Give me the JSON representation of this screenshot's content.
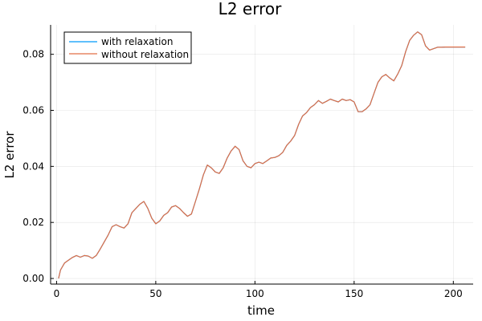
{
  "chart_data": {
    "type": "line",
    "title": "L2 error",
    "xlabel": "time",
    "ylabel": "L2 error",
    "xlim": [
      -3,
      210
    ],
    "ylim": [
      -0.002,
      0.0905
    ],
    "xticks": [
      0,
      50,
      100,
      150,
      200
    ],
    "xtick_labels": [
      "0",
      "50",
      "100",
      "150",
      "200"
    ],
    "yticks": [
      0.0,
      0.02,
      0.04,
      0.06,
      0.08
    ],
    "ytick_labels": [
      "0.00",
      "0.02",
      "0.04",
      "0.06",
      "0.08"
    ],
    "grid": true,
    "legend_position": "top-left",
    "series": [
      {
        "name": "with relaxation",
        "color": "#009AFA",
        "x": [
          1,
          2,
          4,
          6,
          8,
          10,
          12,
          14,
          16,
          18,
          20,
          22,
          24,
          26,
          28,
          30,
          32,
          34,
          36,
          38,
          40,
          42,
          44,
          46,
          48,
          50,
          52,
          54,
          56,
          58,
          60,
          62,
          64,
          66,
          68,
          70,
          72,
          74,
          76,
          78,
          80,
          82,
          84,
          86,
          88,
          90,
          92,
          94,
          96,
          98,
          100,
          102,
          104,
          106,
          108,
          110,
          112,
          114,
          116,
          118,
          120,
          122,
          124,
          126,
          128,
          130,
          132,
          134,
          136,
          138,
          140,
          142,
          144,
          146,
          148,
          150,
          152,
          154,
          156,
          158,
          160,
          162,
          164,
          166,
          168,
          170,
          172,
          174,
          176,
          178,
          180,
          182,
          184,
          186,
          188,
          190,
          192,
          194,
          196,
          198,
          200,
          202,
          204,
          206
        ],
        "y": [
          0.0,
          0.003,
          0.0055,
          0.0065,
          0.0075,
          0.0082,
          0.0076,
          0.0082,
          0.008,
          0.0072,
          0.0082,
          0.0105,
          0.013,
          0.0155,
          0.0185,
          0.0192,
          0.0185,
          0.018,
          0.0195,
          0.0235,
          0.025,
          0.0265,
          0.0275,
          0.025,
          0.0215,
          0.0195,
          0.0205,
          0.0225,
          0.0235,
          0.0255,
          0.026,
          0.025,
          0.0235,
          0.0222,
          0.023,
          0.0275,
          0.032,
          0.037,
          0.0405,
          0.0395,
          0.038,
          0.0375,
          0.0395,
          0.043,
          0.0455,
          0.0472,
          0.046,
          0.042,
          0.04,
          0.0395,
          0.041,
          0.0415,
          0.041,
          0.042,
          0.043,
          0.0432,
          0.0438,
          0.045,
          0.0475,
          0.049,
          0.051,
          0.055,
          0.058,
          0.0592,
          0.061,
          0.062,
          0.0635,
          0.0625,
          0.0632,
          0.064,
          0.0635,
          0.063,
          0.064,
          0.0635,
          0.0638,
          0.063,
          0.0595,
          0.0595,
          0.0605,
          0.062,
          0.066,
          0.07,
          0.072,
          0.0728,
          0.0715,
          0.0705,
          0.073,
          0.076,
          0.081,
          0.085,
          0.0868,
          0.088,
          0.087,
          0.083,
          0.0815,
          0.082,
          0.0825,
          0.0825,
          0.0826,
          0.0826,
          0.0826,
          0.0826,
          0.0826,
          0.0826
        ]
      },
      {
        "name": "without relaxation",
        "color": "#E26F46",
        "x": [
          1,
          2,
          4,
          6,
          8,
          10,
          12,
          14,
          16,
          18,
          20,
          22,
          24,
          26,
          28,
          30,
          32,
          34,
          36,
          38,
          40,
          42,
          44,
          46,
          48,
          50,
          52,
          54,
          56,
          58,
          60,
          62,
          64,
          66,
          68,
          70,
          72,
          74,
          76,
          78,
          80,
          82,
          84,
          86,
          88,
          90,
          92,
          94,
          96,
          98,
          100,
          102,
          104,
          106,
          108,
          110,
          112,
          114,
          116,
          118,
          120,
          122,
          124,
          126,
          128,
          130,
          132,
          134,
          136,
          138,
          140,
          142,
          144,
          146,
          148,
          150,
          152,
          154,
          156,
          158,
          160,
          162,
          164,
          166,
          168,
          170,
          172,
          174,
          176,
          178,
          180,
          182,
          184,
          186,
          188,
          190,
          192,
          194,
          196,
          198,
          200,
          202,
          204,
          206
        ],
        "y": [
          0.0,
          0.003,
          0.0055,
          0.0065,
          0.0075,
          0.0082,
          0.0076,
          0.0082,
          0.008,
          0.0072,
          0.0082,
          0.0105,
          0.013,
          0.0155,
          0.0185,
          0.0192,
          0.0185,
          0.018,
          0.0195,
          0.0235,
          0.025,
          0.0265,
          0.0275,
          0.025,
          0.0215,
          0.0195,
          0.0205,
          0.0225,
          0.0235,
          0.0255,
          0.026,
          0.025,
          0.0235,
          0.0222,
          0.023,
          0.0275,
          0.032,
          0.037,
          0.0405,
          0.0395,
          0.038,
          0.0375,
          0.0395,
          0.043,
          0.0455,
          0.0472,
          0.046,
          0.042,
          0.04,
          0.0395,
          0.041,
          0.0415,
          0.041,
          0.042,
          0.043,
          0.0432,
          0.0438,
          0.045,
          0.0475,
          0.049,
          0.051,
          0.055,
          0.058,
          0.0592,
          0.061,
          0.062,
          0.0635,
          0.0625,
          0.0632,
          0.064,
          0.0635,
          0.063,
          0.064,
          0.0635,
          0.0638,
          0.063,
          0.0595,
          0.0595,
          0.0605,
          0.062,
          0.066,
          0.07,
          0.072,
          0.0728,
          0.0715,
          0.0705,
          0.073,
          0.076,
          0.081,
          0.085,
          0.0868,
          0.088,
          0.087,
          0.083,
          0.0815,
          0.082,
          0.0825,
          0.0825,
          0.0826,
          0.0826,
          0.0826,
          0.0826,
          0.0826,
          0.0826
        ]
      }
    ]
  }
}
